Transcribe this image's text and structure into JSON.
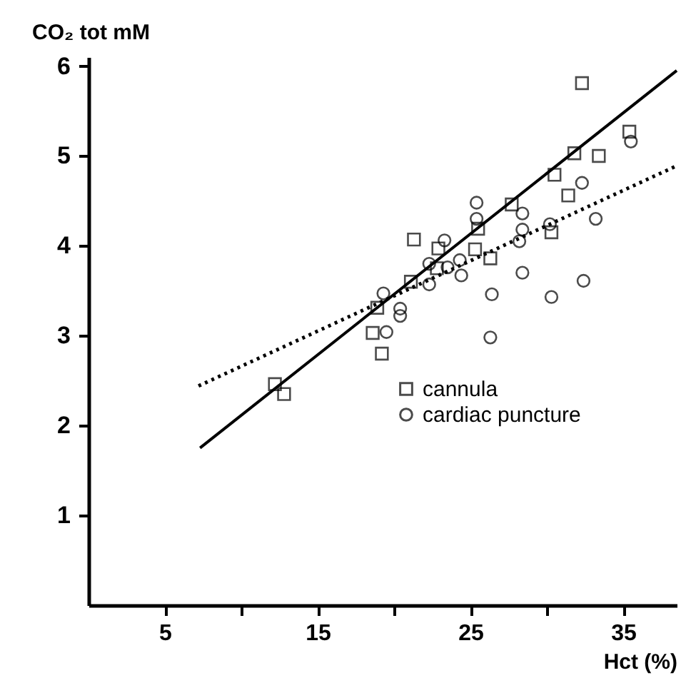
{
  "chart_data": {
    "type": "scatter",
    "xlabel": "Hct (%)",
    "ylabel": "CO₂ tot mM",
    "xlim": [
      0,
      38.5
    ],
    "ylim": [
      0,
      6.1
    ],
    "xticks": [
      5,
      {
        "value": 10,
        "label": null
      },
      15,
      {
        "value": 20,
        "label": null
      },
      25,
      {
        "value": 30,
        "label": null
      },
      35
    ],
    "yticks": [
      1,
      2,
      3,
      4,
      5,
      6
    ],
    "grid": false,
    "legend": "bottom right",
    "series": [
      {
        "name": "cannula",
        "type": "scatter",
        "marker": "square",
        "color": "#000000",
        "x": [
          12.2,
          12.8,
          18.6,
          19.2,
          18.9,
          21.1,
          21.3,
          22.9,
          22.8,
          25.3,
          25.5,
          26.3,
          27.7,
          30.3,
          30.5,
          31.4,
          31.8,
          33.4,
          32.3,
          35.4
        ],
        "values": [
          2.46,
          2.35,
          3.03,
          2.8,
          3.31,
          3.6,
          4.07,
          3.97,
          3.75,
          3.96,
          4.19,
          3.86,
          4.46,
          4.15,
          4.79,
          4.56,
          5.03,
          5.0,
          5.81,
          5.27
        ]
      },
      {
        "name": "cardiac puncture",
        "type": "scatter",
        "marker": "circle",
        "color": "#000000",
        "x": [
          19.3,
          19.5,
          20.4,
          20.4,
          22.3,
          22.3,
          23.3,
          23.5,
          24.3,
          24.4,
          25.4,
          25.4,
          26.4,
          26.3,
          28.4,
          28.4,
          28.2,
          28.4,
          30.2,
          30.3,
          32.3,
          32.4,
          33.2,
          35.5
        ],
        "values": [
          3.47,
          3.04,
          3.3,
          3.22,
          3.8,
          3.57,
          4.06,
          3.76,
          3.84,
          3.67,
          4.48,
          4.3,
          3.46,
          2.98,
          4.36,
          4.18,
          4.05,
          3.7,
          4.24,
          3.43,
          4.7,
          3.61,
          4.3,
          5.16
        ]
      },
      {
        "type": "line",
        "line_style": "solid",
        "color": "#000000",
        "x": [
          7.3,
          38.5
        ],
        "values": [
          1.75,
          5.95
        ]
      },
      {
        "type": "line",
        "line_style": "dotted",
        "color": "#000000",
        "x": [
          7.2,
          38.5
        ],
        "values": [
          2.44,
          4.89
        ]
      }
    ]
  }
}
